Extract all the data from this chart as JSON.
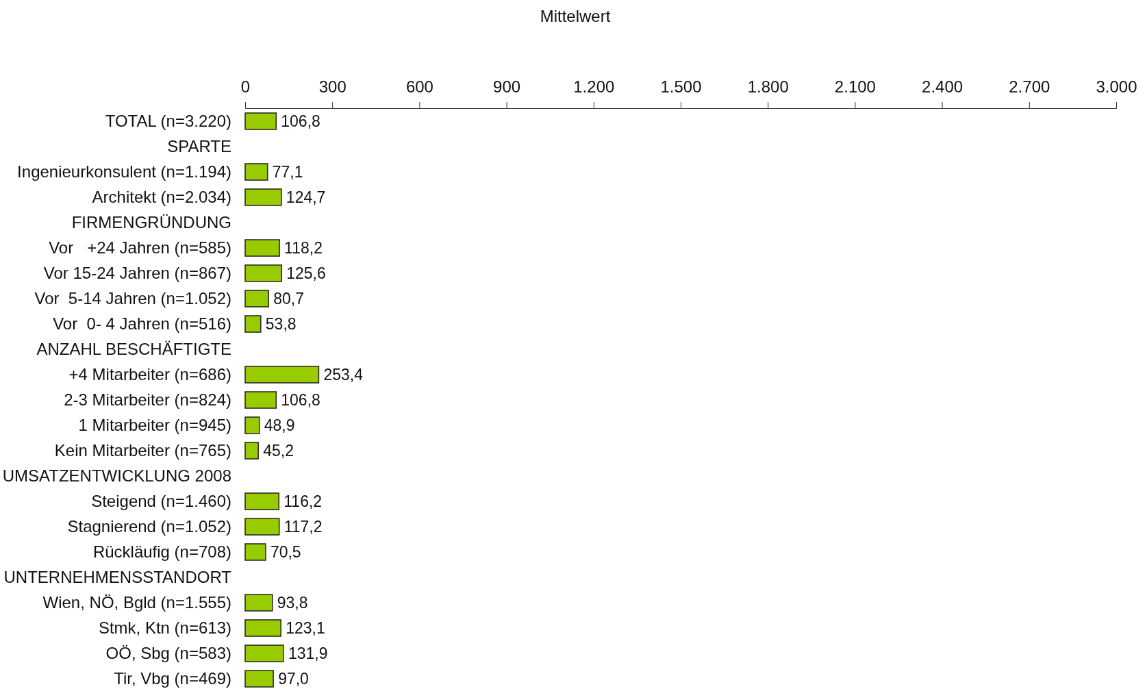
{
  "chart_data": {
    "type": "bar",
    "orientation": "horizontal",
    "xlabel": "Mittelwert",
    "categories": [
      "TOTAL (n=3.220)",
      "SPARTE",
      "Ingenieurkonsulent (n=1.194)",
      "Architekt (n=2.034)",
      "FIRMENGRÜNDUNG",
      "Vor   +24 Jahren (n=585)",
      "Vor 15-24 Jahren (n=867)",
      "Vor  5-14 Jahren (n=1.052)",
      "Vor  0- 4 Jahren (n=516)",
      "ANZAHL BESCHÄFTIGTE",
      "+4 Mitarbeiter (n=686)",
      "2-3 Mitarbeiter (n=824)",
      "1 Mitarbeiter (n=945)",
      "Kein Mitarbeiter (n=765)",
      "UMSATZENTWICKLUNG 2008",
      "Steigend (n=1.460)",
      "Stagnierend (n=1.052)",
      "Rückläufig (n=708)",
      "UNTERNEHMENSSTANDORT",
      "Wien, NÖ, Bgld (n=1.555)",
      "Stmk, Ktn (n=613)",
      "OÖ, Sbg (n=583)",
      "Tir, Vbg (n=469)"
    ],
    "values": [
      106.8,
      null,
      77.1,
      124.7,
      null,
      118.2,
      125.6,
      80.7,
      53.8,
      null,
      253.4,
      106.8,
      48.9,
      45.2,
      null,
      116.2,
      117.2,
      70.5,
      null,
      93.8,
      123.1,
      131.9,
      97.0
    ],
    "value_labels": [
      "106,8",
      null,
      "77,1",
      "124,7",
      null,
      "118,2",
      "125,6",
      "80,7",
      "53,8",
      null,
      "253,4",
      "106,8",
      "48,9",
      "45,2",
      null,
      "116,2",
      "117,2",
      "70,5",
      null,
      "93,8",
      "123,1",
      "131,9",
      "97,0"
    ],
    "color": "#99cc00",
    "xlim": [
      0,
      3000
    ],
    "xticks": [
      0,
      300,
      600,
      900,
      {
        "value": 1200,
        "label": "1.200"
      },
      {
        "value": 1500,
        "label": "1.500"
      },
      {
        "value": 1800,
        "label": "1.800"
      },
      {
        "value": 2100,
        "label": "2.100"
      },
      {
        "value": 2400,
        "label": "2.400"
      },
      {
        "value": 2700,
        "label": "2.700"
      },
      {
        "value": 3000,
        "label": "3.000"
      }
    ],
    "grid": false
  }
}
